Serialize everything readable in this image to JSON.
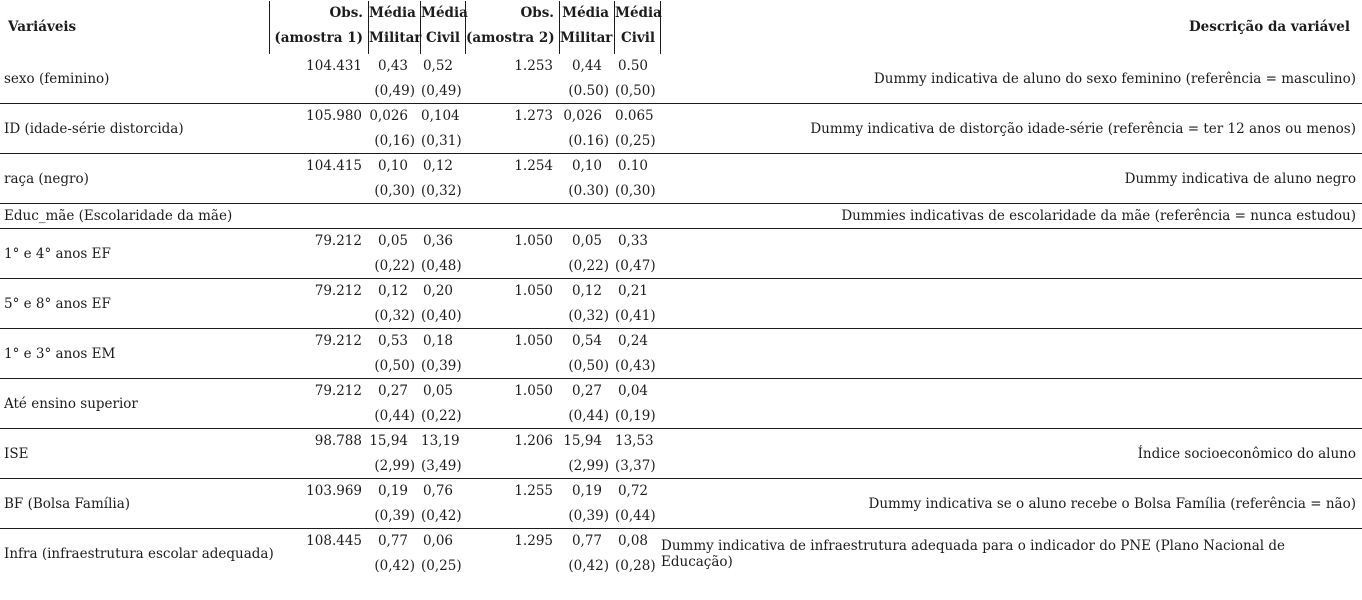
{
  "colors": {
    "background": "#ffffff",
    "text": "#1c1c1c",
    "rule": "#1c1c1c"
  },
  "table": {
    "header": {
      "variables": "Variáveis",
      "obs1_line1": "Obs.",
      "obs1_line2": "(amostra 1)",
      "media_militar1_line1": "Média",
      "media_militar1_line2": "Militar",
      "media_civil1_line1": "Média",
      "media_civil1_line2": "Civil",
      "obs2_line1": "Obs.",
      "obs2_line2": "(amostra 2)",
      "media_militar2_line1": "Média",
      "media_militar2_line2": "Militar",
      "media_civil2_line1": "Média",
      "media_civil2_line2": "Civil",
      "description": "Descrição da variável"
    },
    "rows": [
      {
        "variable": "sexo (feminino)",
        "section": false,
        "obs1": "104.431",
        "media_militar1": "0,43",
        "media_civil1": "0,52",
        "obs2": "1.253",
        "media_militar2": "0,44",
        "media_civil2": "0.50",
        "sd_militar1": "(0,49)",
        "sd_civil1": "(0,49)",
        "sd_militar2": "(0.50)",
        "sd_civil2": "(0,50)",
        "description": "Dummy indicativa de aluno do sexo feminino (referência = masculino)"
      },
      {
        "variable": "ID (idade-série distorcida)",
        "section": false,
        "obs1": "105.980",
        "media_militar1": "0,026",
        "media_civil1": "0,104",
        "obs2": "1.273",
        "media_militar2": "0,026",
        "media_civil2": "0.065",
        "sd_militar1": "(0,16)",
        "sd_civil1": "(0,31)",
        "sd_militar2": "(0.16)",
        "sd_civil2": "(0,25)",
        "description": "Dummy indicativa de distorção idade-série (referência = ter 12 anos ou menos)"
      },
      {
        "variable": "raça (negro)",
        "section": false,
        "obs1": "104.415",
        "media_militar1": "0,10",
        "media_civil1": "0,12",
        "obs2": "1.254",
        "media_militar2": "0,10",
        "media_civil2": "0.10",
        "sd_militar1": "(0,30)",
        "sd_civil1": "(0,32)",
        "sd_militar2": "(0.30)",
        "sd_civil2": "(0,30)",
        "description": "Dummy indicativa de aluno negro"
      },
      {
        "variable": "Educ_mãe (Escolaridade da mãe)",
        "section": true,
        "obs1": "",
        "media_militar1": "",
        "media_civil1": "",
        "obs2": "",
        "media_militar2": "",
        "media_civil2": "",
        "sd_militar1": "",
        "sd_civil1": "",
        "sd_militar2": "",
        "sd_civil2": "",
        "description": "Dummies indicativas de escolaridade da mãe (referência = nunca estudou)"
      },
      {
        "variable": "1° e 4° anos EF",
        "section": false,
        "obs1": "79.212",
        "media_militar1": "0,05",
        "media_civil1": "0,36",
        "obs2": "1.050",
        "media_militar2": "0,05",
        "media_civil2": "0,33",
        "sd_militar1": "(0,22)",
        "sd_civil1": "(0,48)",
        "sd_militar2": "(0,22)",
        "sd_civil2": "(0,47)",
        "description": ""
      },
      {
        "variable": "5° e 8° anos EF",
        "section": false,
        "obs1": "79.212",
        "media_militar1": "0,12",
        "media_civil1": "0,20",
        "obs2": "1.050",
        "media_militar2": "0,12",
        "media_civil2": "0,21",
        "sd_militar1": "(0,32)",
        "sd_civil1": "(0,40)",
        "sd_militar2": "(0,32)",
        "sd_civil2": "(0,41)",
        "description": ""
      },
      {
        "variable": "1° e 3° anos EM",
        "section": false,
        "obs1": "79.212",
        "media_militar1": "0,53",
        "media_civil1": "0,18",
        "obs2": "1.050",
        "media_militar2": "0,54",
        "media_civil2": "0,24",
        "sd_militar1": "(0,50)",
        "sd_civil1": "(0,39)",
        "sd_militar2": "(0,50)",
        "sd_civil2": "(0,43)",
        "description": ""
      },
      {
        "variable": "Até ensino superior",
        "section": false,
        "obs1": "79.212",
        "media_militar1": "0,27",
        "media_civil1": "0,05",
        "obs2": "1.050",
        "media_militar2": "0,27",
        "media_civil2": "0,04",
        "sd_militar1": "(0,44)",
        "sd_civil1": "(0,22)",
        "sd_militar2": "(0,44)",
        "sd_civil2": "(0,19)",
        "description": ""
      },
      {
        "variable": "ISE",
        "section": false,
        "obs1": "98.788",
        "media_militar1": "15,94",
        "media_civil1": "13,19",
        "obs2": "1.206",
        "media_militar2": "15,94",
        "media_civil2": "13,53",
        "sd_militar1": "(2,99)",
        "sd_civil1": "(3,49)",
        "sd_militar2": "(2,99)",
        "sd_civil2": "(3,37)",
        "description": "Índice socioeconômico do aluno"
      },
      {
        "variable": "BF (Bolsa Família)",
        "section": false,
        "obs1": "103.969",
        "media_militar1": "0,19",
        "media_civil1": "0,76",
        "obs2": "1.255",
        "media_militar2": "0,19",
        "media_civil2": "0,72",
        "sd_militar1": "(0,39)",
        "sd_civil1": "(0,42)",
        "sd_militar2": "(0,39)",
        "sd_civil2": "(0,44)",
        "description": "Dummy indicativa se o aluno recebe o Bolsa Família (referência = não)"
      },
      {
        "variable": "Infra (infraestrutura escolar adequada)",
        "section": false,
        "obs1": "108.445",
        "media_militar1": "0,77",
        "media_civil1": "0,06",
        "obs2": "1.295",
        "media_militar2": "0,77",
        "media_civil2": "0,08",
        "sd_militar1": "(0,42)",
        "sd_civil1": "(0,25)",
        "sd_militar2": "(0,42)",
        "sd_civil2": "(0,28)",
        "description": "Dummy indicativa de infraestrutura adequada para o indicador do PNE (Plano Nacional de Educação)"
      }
    ]
  }
}
